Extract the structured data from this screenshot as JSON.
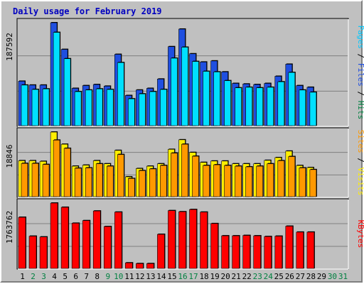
{
  "colors": {
    "background": "#c0c0c0",
    "grid": "#7f7f7f",
    "title": "#0000c0",
    "hits": "#1f4fe0",
    "files": "#00e0ff",
    "pages": "#00c8ff",
    "visits": "#ffee00",
    "sites": "#ff9900",
    "kbytes": "#ff0000",
    "weekday": "#000000",
    "weekend": "#008040"
  },
  "chart_data": {
    "type": "bar",
    "title": "Daily usage for February 2019",
    "categories": [
      "1",
      "2",
      "3",
      "4",
      "5",
      "6",
      "7",
      "8",
      "9",
      "10",
      "11",
      "12",
      "13",
      "14",
      "15",
      "16",
      "17",
      "18",
      "19",
      "20",
      "21",
      "22",
      "23",
      "24",
      "25",
      "26",
      "27",
      "28",
      "29",
      "30",
      "31"
    ],
    "weekend_days": [
      "2",
      "3",
      "9",
      "10",
      "16",
      "17",
      "23",
      "24",
      "30",
      "31"
    ],
    "panels": [
      {
        "name": "hits-files-pages",
        "ymax_label": "187592",
        "ymax": 187592,
        "side_labels": [
          {
            "text": "Pages",
            "color": "#00c8ff"
          },
          {
            "text": " / ",
            "color": "#000000"
          },
          {
            "text": "Files",
            "color": "#1f4fe0"
          },
          {
            "text": " / ",
            "color": "#000000"
          },
          {
            "text": "Hits",
            "color": "#008040"
          }
        ],
        "series": [
          {
            "name": "Hits",
            "color": "#1f4fe0",
            "values": [
              81000,
              74000,
              74000,
              187592,
              139000,
              68000,
              73000,
              75000,
              72000,
              130000,
              55000,
              65000,
              68000,
              85000,
              144000,
              176000,
              131000,
              116000,
              118000,
              98000,
              77000,
              76000,
              75000,
              77000,
              90000,
              112000,
              73000,
              70000,
              0,
              0,
              0
            ]
          },
          {
            "name": "Files",
            "color": "#00e0ff",
            "values": [
              74000,
              66000,
              67000,
              170000,
              122000,
              62000,
              65000,
              67000,
              66000,
              115000,
              49000,
              58000,
              62000,
              66000,
              123000,
              143000,
              117000,
              99000,
              98000,
              82000,
              69000,
              70000,
              69000,
              70000,
              80000,
              97000,
              65000,
              61000,
              0,
              0,
              0
            ]
          },
          {
            "name": "Pages",
            "color": "#00c8ff",
            "values": []
          }
        ]
      },
      {
        "name": "visits-sites",
        "ymax_label": "18846",
        "ymax": 18846,
        "side_labels": [
          {
            "text": "Sites",
            "color": "#ff9900"
          },
          {
            "text": " / ",
            "color": "#000000"
          },
          {
            "text": "Visits",
            "color": "#ffee00"
          }
        ],
        "series": [
          {
            "name": "Visits",
            "color": "#ffee00",
            "values": [
              10500,
              10500,
              10300,
              18846,
              15300,
              8900,
              9200,
              10500,
              9600,
              13500,
              5800,
              8200,
              8900,
              9600,
              13800,
              16600,
              12900,
              10000,
              10400,
              10400,
              9600,
              9600,
              9600,
              10600,
              11400,
              13300,
              9100,
              8500,
              0,
              0,
              0
            ]
          },
          {
            "name": "Sites",
            "color": "#ff9900",
            "values": [
              9700,
              9700,
              9400,
              16500,
              14100,
              8300,
              8400,
              9600,
              8900,
              12300,
              5300,
              7600,
              8100,
              9100,
              12700,
              15300,
              11800,
              9100,
              9300,
              9100,
              8900,
              8700,
              8900,
              9600,
              10500,
              11700,
              8400,
              7900,
              0,
              0,
              0
            ]
          }
        ]
      },
      {
        "name": "kbytes",
        "ymax_label": "1763762",
        "ymax": 1763762,
        "side_labels": [
          {
            "text": "KBytes",
            "color": "#ff0000"
          }
        ],
        "series": [
          {
            "name": "KBytes",
            "color": "#ff0000",
            "values": [
              1380000,
              870000,
              850000,
              1763762,
              1650000,
              1220000,
              1290000,
              1550000,
              1130000,
              1520000,
              150000,
              130000,
              130000,
              920000,
              1560000,
              1530000,
              1590000,
              1520000,
              1210000,
              880000,
              880000,
              890000,
              880000,
              860000,
              870000,
              1140000,
              980000,
              980000,
              0,
              0,
              0
            ]
          }
        ]
      }
    ]
  }
}
